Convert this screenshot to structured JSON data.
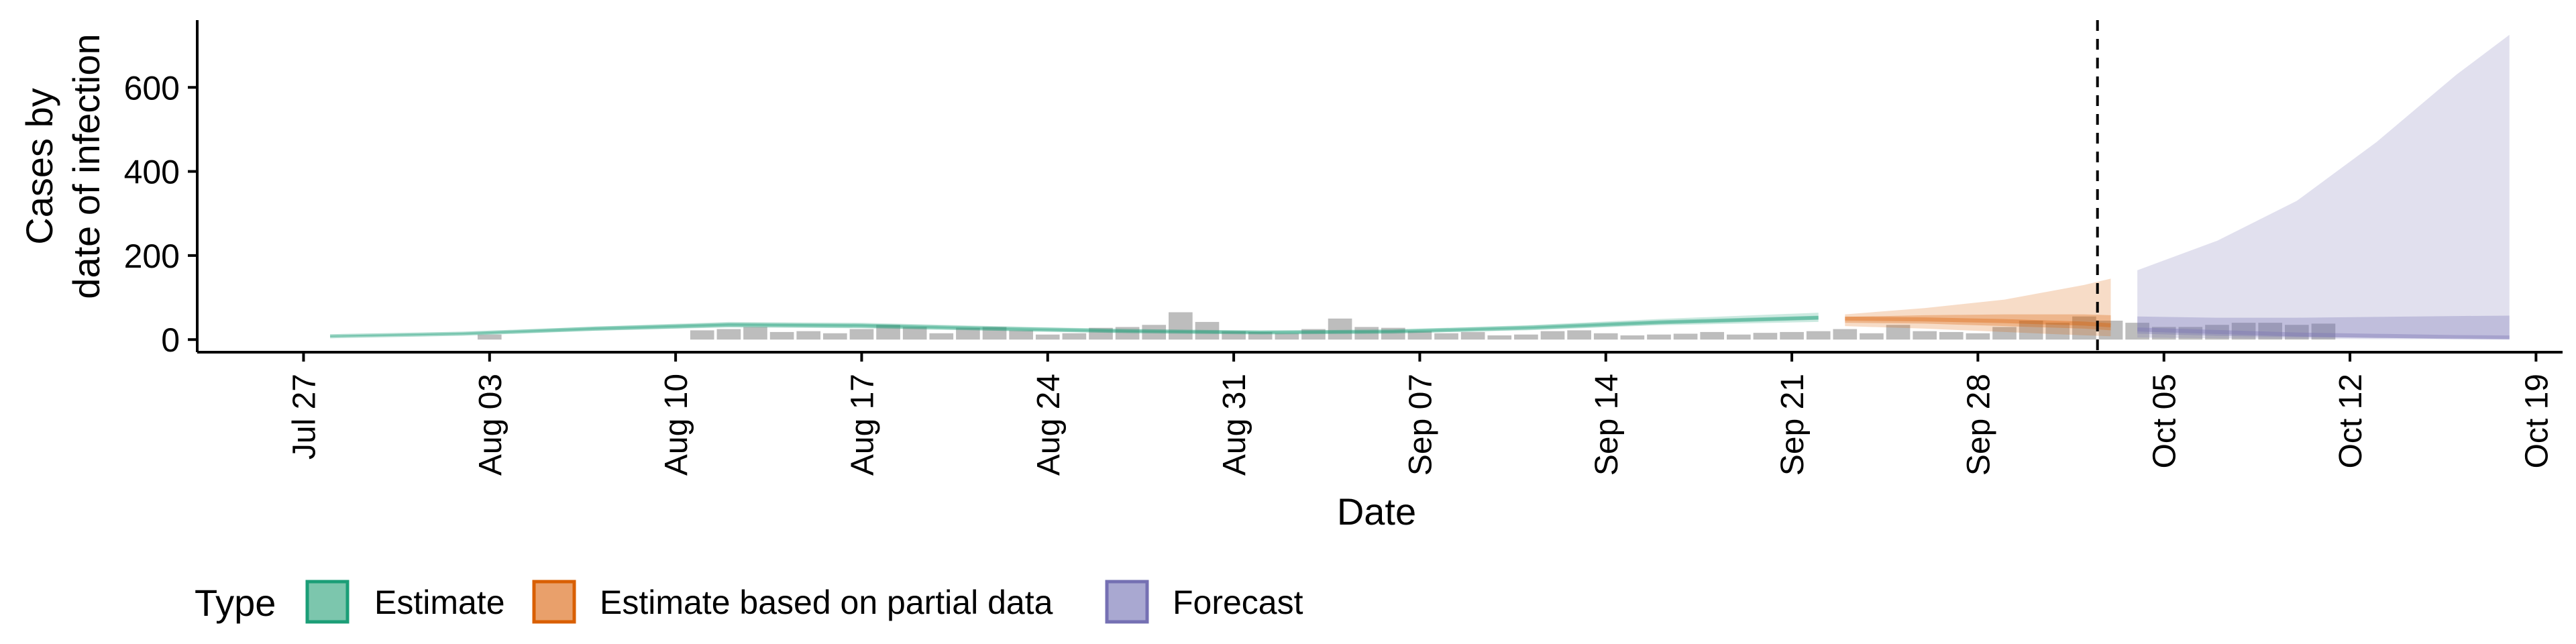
{
  "chart_data": {
    "type": "area",
    "title": "",
    "xlabel": "Date",
    "ylabel_lines": [
      "Cases by",
      "date of infection"
    ],
    "ylim": [
      -30,
      760
    ],
    "xlim": [
      "2020-07-23",
      "2020-10-20"
    ],
    "yticks": [
      0,
      200,
      400,
      600
    ],
    "xticks": [
      {
        "date": "2020-07-27",
        "label": "Jul 27"
      },
      {
        "date": "2020-08-03",
        "label": "Aug 03"
      },
      {
        "date": "2020-08-10",
        "label": "Aug 10"
      },
      {
        "date": "2020-08-17",
        "label": "Aug 17"
      },
      {
        "date": "2020-08-24",
        "label": "Aug 24"
      },
      {
        "date": "2020-08-31",
        "label": "Aug 31"
      },
      {
        "date": "2020-09-07",
        "label": "Sep 07"
      },
      {
        "date": "2020-09-14",
        "label": "Sep 14"
      },
      {
        "date": "2020-09-21",
        "label": "Sep 21"
      },
      {
        "date": "2020-09-28",
        "label": "Sep 28"
      },
      {
        "date": "2020-10-05",
        "label": "Oct 05"
      },
      {
        "date": "2020-10-12",
        "label": "Oct 12"
      },
      {
        "date": "2020-10-19",
        "label": "Oct 19"
      }
    ],
    "forecast_start": "2020-10-03",
    "observed_cases": {
      "start": "2020-07-28",
      "values": [
        0,
        0,
        0,
        0,
        0,
        0,
        12,
        0,
        0,
        0,
        0,
        0,
        0,
        0,
        22,
        25,
        30,
        18,
        20,
        15,
        25,
        35,
        30,
        15,
        28,
        30,
        22,
        12,
        15,
        28,
        30,
        35,
        65,
        42,
        20,
        18,
        15,
        25,
        50,
        30,
        28,
        20,
        15,
        18,
        10,
        12,
        20,
        22,
        15,
        10,
        12,
        14,
        18,
        12,
        16,
        18,
        20,
        25,
        15,
        35,
        20,
        18,
        15,
        30,
        45,
        40,
        55,
        45,
        40,
        30,
        30,
        35,
        40,
        40,
        35,
        38
      ]
    },
    "legend": {
      "title": "Type",
      "position": "bottom",
      "items": [
        {
          "label": "Estimate",
          "fill": "#7cc6ad",
          "stroke": "#1b9e77"
        },
        {
          "label": "Estimate based on partial data",
          "fill": "#e9a06b",
          "stroke": "#d95f02"
        },
        {
          "label": "Forecast",
          "fill": "#a9a8d1",
          "stroke": "#7570b3"
        }
      ]
    },
    "series": [
      {
        "name": "Estimate",
        "color": "#1b9e77",
        "x": [
          "2020-07-28",
          "2020-08-02",
          "2020-08-07",
          "2020-08-12",
          "2020-08-17",
          "2020-08-22",
          "2020-08-27",
          "2020-09-01",
          "2020-09-06",
          "2020-09-11",
          "2020-09-16",
          "2020-09-22"
        ],
        "median": [
          8,
          14,
          26,
          35,
          33,
          26,
          20,
          17,
          19,
          28,
          41,
          52
        ],
        "lower90": [
          6,
          11,
          21,
          29,
          27,
          21,
          16,
          13,
          15,
          22,
          34,
          42
        ],
        "upper90": [
          10,
          17,
          31,
          42,
          40,
          32,
          25,
          21,
          24,
          34,
          49,
          64
        ],
        "lower50": [
          7,
          13,
          24,
          33,
          31,
          24,
          18,
          15,
          17,
          26,
          38,
          48
        ],
        "upper50": [
          9,
          15,
          28,
          38,
          36,
          28,
          22,
          19,
          21,
          30,
          44,
          56
        ]
      },
      {
        "name": "Estimate based on partial data",
        "color": "#d95f02",
        "x": [
          "2020-09-23",
          "2020-09-26",
          "2020-09-29",
          "2020-10-02",
          "2020-10-03"
        ],
        "median": [
          50,
          48,
          44,
          38,
          34
        ],
        "lower90": [
          32,
          26,
          18,
          10,
          8
        ],
        "upper90": [
          60,
          75,
          95,
          130,
          145
        ],
        "lower50": [
          40,
          38,
          32,
          26,
          22
        ],
        "upper50": [
          54,
          58,
          60,
          60,
          58
        ]
      },
      {
        "name": "Forecast",
        "color": "#7570b3",
        "x": [
          "2020-10-04",
          "2020-10-07",
          "2020-10-10",
          "2020-10-13",
          "2020-10-16",
          "2020-10-18"
        ],
        "median": [
          24,
          18,
          12,
          9,
          6,
          5
        ],
        "lower90": [
          5,
          3,
          2,
          1,
          1,
          0
        ],
        "upper90": [
          165,
          235,
          330,
          470,
          630,
          725
        ],
        "lower50": [
          14,
          9,
          6,
          4,
          3,
          2
        ],
        "upper50": [
          55,
          52,
          52,
          54,
          56,
          57
        ]
      }
    ]
  }
}
